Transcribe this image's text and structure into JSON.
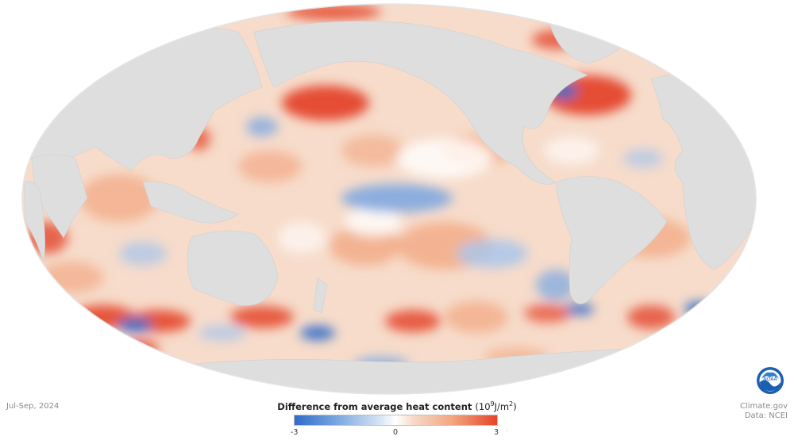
{
  "legend": {
    "title": "Difference from average heat content",
    "units_base": "(10",
    "units_exp": "9",
    "units_rest": "J/m",
    "units_sq": "2",
    "units_close": ")",
    "min_label": "-3",
    "mid_label": "0",
    "max_label": "3",
    "colors": {
      "negative": "#2f6cc9",
      "neutral": "#ffffff",
      "positive": "#e4452a",
      "land": "#dedede"
    }
  },
  "period": "Jul-Sep, 2024",
  "credits": {
    "line1": "Climate.gov",
    "line2": "Data: NCEI"
  },
  "logo": {
    "text": "NOAA",
    "icon": "noaa-logo-icon"
  }
}
